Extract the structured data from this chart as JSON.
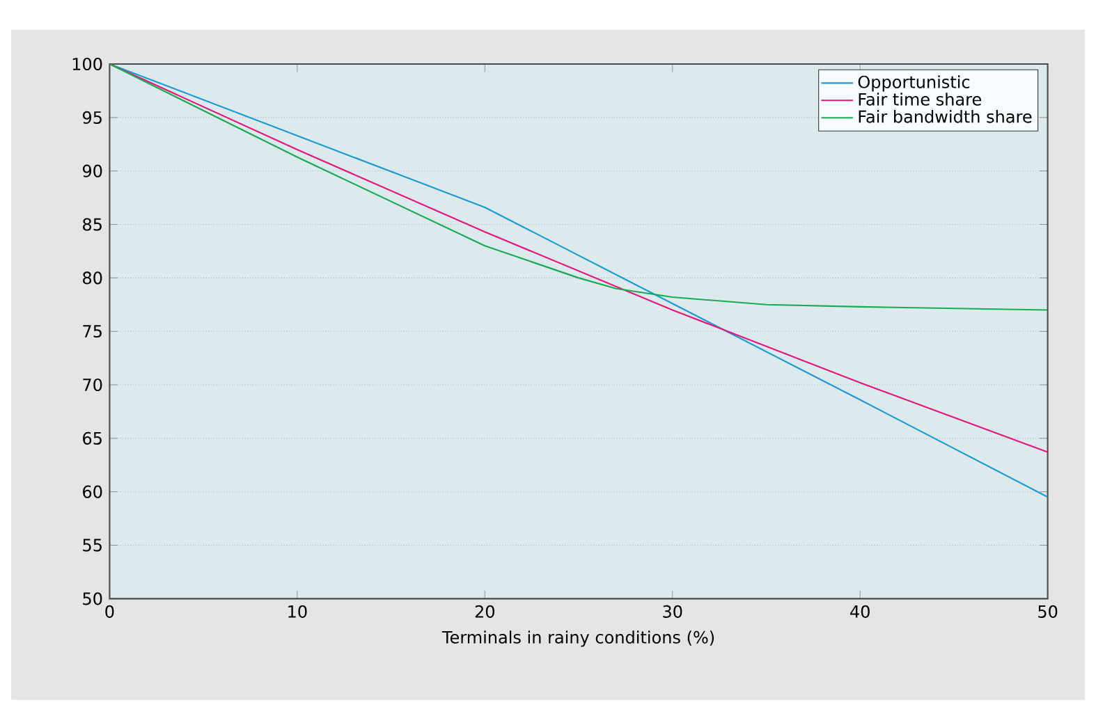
{
  "chart_data": {
    "type": "line",
    "xlabel": "Terminals in rainy conditions (%)",
    "xlim": [
      0,
      50
    ],
    "xticks": [
      0,
      10,
      20,
      30,
      40,
      50
    ],
    "ylim": [
      50,
      100
    ],
    "yticks": [
      50,
      55,
      60,
      65,
      70,
      75,
      80,
      85,
      90,
      95,
      100
    ],
    "grid": "y",
    "legend": "top right",
    "marker": "none",
    "line_style": "solid",
    "series": [
      {
        "name": "Opportunistic",
        "color": "#1a9ad6",
        "x": [
          0,
          10,
          20,
          30,
          40,
          50
        ],
        "values": [
          100,
          93.3,
          86.6,
          77.6,
          68.6,
          59.5
        ]
      },
      {
        "name": "Fair time share",
        "color": "#e5177b",
        "x": [
          0,
          10,
          20,
          30,
          40,
          50
        ],
        "values": [
          100,
          92.0,
          84.3,
          77.0,
          70.2,
          63.7
        ]
      },
      {
        "name": "Fair bandwidth share",
        "color": "#1aaa55",
        "x": [
          0,
          10,
          20,
          25,
          27,
          30,
          35,
          40,
          50
        ],
        "values": [
          100,
          91.3,
          83.0,
          80.0,
          79.0,
          78.2,
          77.5,
          77.3,
          77.0
        ]
      }
    ]
  }
}
